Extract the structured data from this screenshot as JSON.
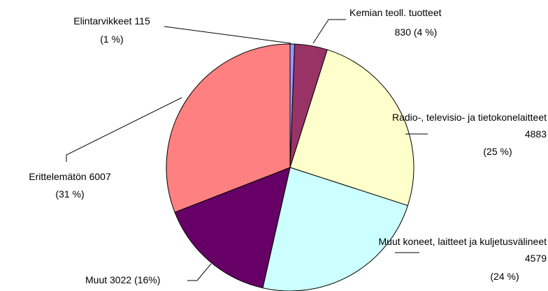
{
  "chart_data": {
    "type": "pie",
    "categories": [
      "Elintarvikkeet",
      "Kemian teoll. tuotteet",
      "Radio-, televisio- ja tietokonelaitteet",
      "Muut koneet, laitteet ja kuljetusvälineet",
      "Muut",
      "Erittelemätön"
    ],
    "values": [
      115,
      830,
      4883,
      4579,
      3022,
      6007
    ],
    "percent_labels": [
      "(1 %)",
      "(4 %)",
      "(25 %)",
      "(24 %)",
      "(16%)",
      "(31 %)"
    ],
    "colors": [
      "#9999ff",
      "#993366",
      "#ffffcc",
      "#ccffff",
      "#660066",
      "#ff8080"
    ]
  }
}
